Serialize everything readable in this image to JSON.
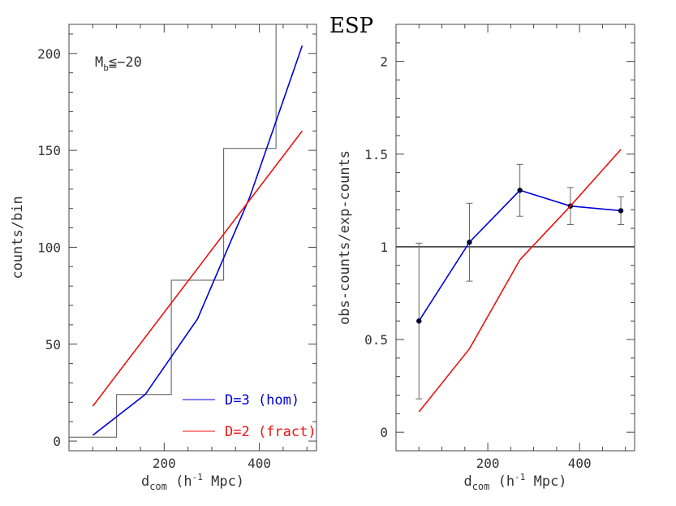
{
  "figure_title": "ESP",
  "colors": {
    "hom": "#0000dd",
    "fract": "#ee1111",
    "hist": "#555555",
    "ref": "#333333",
    "axis": "#444444"
  },
  "chart_data": [
    {
      "type": "line",
      "panel": "left",
      "title": "",
      "xlabel": {
        "main": "d",
        "sub": "com",
        "rest": " (h",
        "sup": "-1",
        "tail": " Mpc)"
      },
      "ylabel": "counts/bin",
      "annotation": {
        "main": "M",
        "sub": "b",
        "rest": "≦−20"
      },
      "xlim": [
        0,
        520
      ],
      "ylim": [
        -5,
        215
      ],
      "xticks": [
        200,
        400
      ],
      "yticks": [
        0,
        50,
        100,
        150,
        200
      ],
      "xtick_labels": [
        "200",
        "400"
      ],
      "ytick_labels": [
        "0",
        "50",
        "100",
        "150",
        "200"
      ],
      "histogram": {
        "edges": [
          0,
          100,
          215,
          325,
          435,
          520
        ],
        "counts": [
          2,
          24,
          83,
          151,
          215
        ]
      },
      "series": [
        {
          "name": "D=3 (hom)",
          "x": [
            50,
            160,
            270,
            380,
            490
          ],
          "y": [
            3,
            24,
            63,
            126,
            204
          ]
        },
        {
          "name": "D=2 (fract)",
          "x": [
            50,
            490
          ],
          "y": [
            18,
            160
          ]
        }
      ],
      "legend": [
        {
          "label": "D=3 (hom)",
          "series": 0
        },
        {
          "label": "D=2 (fract)",
          "series": 1
        }
      ],
      "legend_position": "bottom-right"
    },
    {
      "type": "line",
      "panel": "right",
      "title": "",
      "xlabel": {
        "main": "d",
        "sub": "com",
        "rest": " (h",
        "sup": "-1",
        "tail": " Mpc)"
      },
      "ylabel": "obs-counts/exp-counts",
      "xlim": [
        0,
        520
      ],
      "ylim": [
        -0.1,
        2.2
      ],
      "xticks": [
        200,
        400
      ],
      "yticks": [
        0,
        0.5,
        1,
        1.5,
        2
      ],
      "xtick_labels": [
        "200",
        "400"
      ],
      "ytick_labels": [
        "0",
        "0.5",
        "1",
        "1.5",
        "2"
      ],
      "reference_line": 1,
      "series": [
        {
          "name": "D=3 (hom)",
          "x": [
            50,
            160,
            270,
            380,
            490
          ],
          "y": [
            0.6,
            1.025,
            1.305,
            1.22,
            1.195
          ],
          "err_low": [
            0.42,
            0.21,
            0.14,
            0.1,
            0.075
          ],
          "err_high": [
            0.42,
            0.21,
            0.14,
            0.1,
            0.075
          ]
        },
        {
          "name": "D=2 (fract)",
          "x": [
            50,
            160,
            270,
            380,
            490
          ],
          "y": [
            0.11,
            0.45,
            0.93,
            1.22,
            1.525
          ]
        }
      ]
    }
  ]
}
